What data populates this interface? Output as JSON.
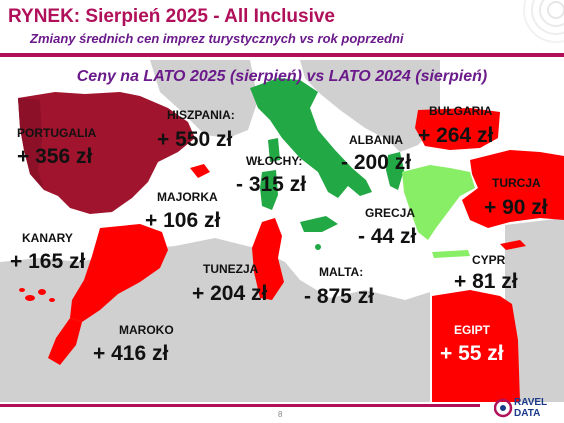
{
  "header": {
    "title": "RYNEK: Sierpień 2025 - All Inclusive",
    "subtitle": "Zmiany średnich cen imprez turystycznych vs rok poprzedni"
  },
  "map": {
    "title": "Ceny na LATO 2025 (sierpień) vs  LATO 2024 (sierpień)",
    "colors": {
      "sea": "#ffffff",
      "land_neutral": "#d0d0d0",
      "increase_high": "#a0142e",
      "increase": "#ff0000",
      "decrease_strong": "#22a844",
      "decrease_light": "#88ee66"
    },
    "regions": [
      {
        "name": "PORTUGALIA",
        "value": "+ 356 zł",
        "color_key": "increase_high"
      },
      {
        "name": "HISZPANIA:",
        "value": "+ 550 zł",
        "color_key": "increase_high"
      },
      {
        "name": "WŁOCHY:",
        "value": "- 315 zł",
        "color_key": "decrease_strong"
      },
      {
        "name": "ALBANIA",
        "value": "- 200 zł",
        "color_key": "decrease_strong"
      },
      {
        "name": "BUŁGARIA",
        "value": "+ 264 zł",
        "color_key": "increase"
      },
      {
        "name": "TURCJA",
        "value": "+ 90 zł",
        "color_key": "increase"
      },
      {
        "name": "MAJORKA",
        "value": "+ 106 zł",
        "color_key": "increase"
      },
      {
        "name": "GRECJA",
        "value": "- 44 zł",
        "color_key": "decrease_light"
      },
      {
        "name": "KANARY",
        "value": "+ 165 zł",
        "color_key": "increase"
      },
      {
        "name": "TUNEZJA",
        "value": "+ 204 zł",
        "color_key": "increase"
      },
      {
        "name": "MALTA:",
        "value": "- 875 zł",
        "color_key": "decrease_strong"
      },
      {
        "name": "CYPR",
        "value": "+ 81 zł",
        "color_key": "increase"
      },
      {
        "name": "MAROKO",
        "value": "+ 416 zł",
        "color_key": "increase"
      },
      {
        "name": "EGIPT",
        "value": "+ 55 zł",
        "color_key": "increase"
      }
    ]
  },
  "footer": {
    "page_number": "8",
    "logo_line1": "RAVEL",
    "logo_line2": "DATA"
  }
}
